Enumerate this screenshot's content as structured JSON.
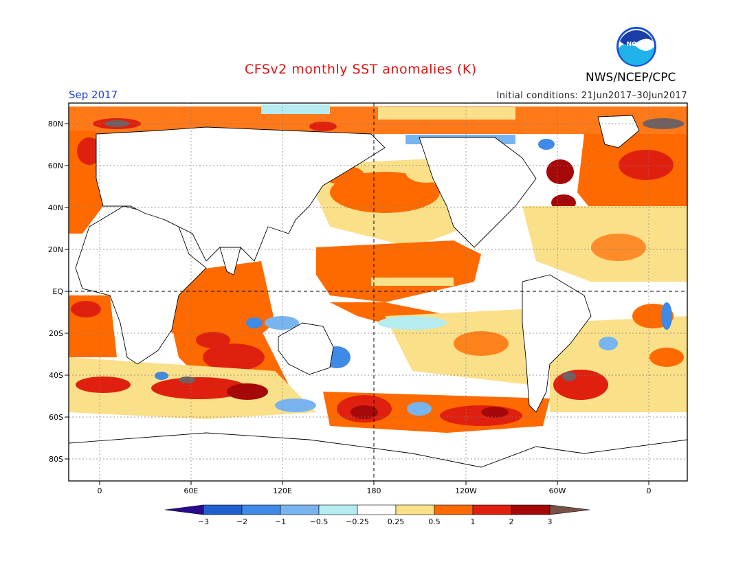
{
  "header": {
    "title": "CFSv2 monthly SST anomalies (K)",
    "agency": "NWS/NCEP/CPC",
    "logo_text": "NOAA",
    "month": "Sep 2017",
    "initial_conditions": "Initial conditions: 21Jun2017–30Jun2017"
  },
  "map": {
    "lat_labels": [
      "80N",
      "60N",
      "40N",
      "20N",
      "EQ",
      "20S",
      "40S",
      "60S",
      "80S"
    ],
    "lon_labels": [
      "0",
      "60E",
      "120E",
      "180",
      "120W",
      "60W",
      "0"
    ],
    "grid_lines": "dotted",
    "reference_lines": [
      "EQ",
      "180"
    ]
  },
  "colorbar": {
    "tick_labels": [
      "−3",
      "−2",
      "−1",
      "−0.5",
      "−0.25",
      "0.25",
      "0.5",
      "1",
      "2",
      "3"
    ],
    "colors": [
      "#2a0a8c",
      "#1f5fd0",
      "#3e8ae6",
      "#78b4f0",
      "#b4ecf0",
      "#ffffff",
      "#fbe08a",
      "#ff6a00",
      "#e0200f",
      "#a50808",
      "#7a5048"
    ]
  },
  "colors": {
    "land": "#ffffff",
    "ice_gray": "#706060",
    "title": "#dd1111",
    "month": "#1f3fd8"
  }
}
